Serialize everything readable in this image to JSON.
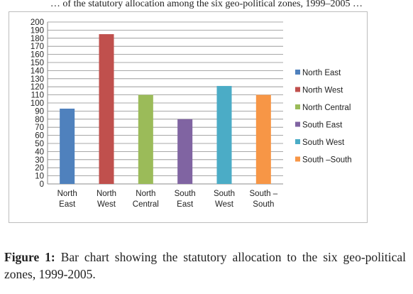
{
  "page": {
    "top_text": "… of the statutory allocation among the six geo-political zones, 1999–2005 …"
  },
  "caption": {
    "label": "Figure 1:",
    "text": "Bar chart showing the statutory allocation to the six geo-political zones, 1999-2005."
  },
  "chart_data": {
    "type": "bar",
    "categories": [
      [
        "North",
        "East"
      ],
      [
        "North",
        "West"
      ],
      [
        "North",
        "Central"
      ],
      [
        "South",
        "East"
      ],
      [
        "South",
        "West"
      ],
      [
        "South –",
        "South"
      ]
    ],
    "values": [
      93,
      185,
      110,
      80,
      121,
      110
    ],
    "colors": [
      "#4f81bd",
      "#c0504d",
      "#9bbb59",
      "#8064a2",
      "#4bacc6",
      "#f79646"
    ],
    "legend": [
      "North East",
      "North West",
      "North Central",
      "South East",
      "South West",
      "South –South"
    ],
    "legend_position": "right",
    "ylim": [
      0,
      200
    ],
    "ytick_step": 10,
    "grid": true
  }
}
